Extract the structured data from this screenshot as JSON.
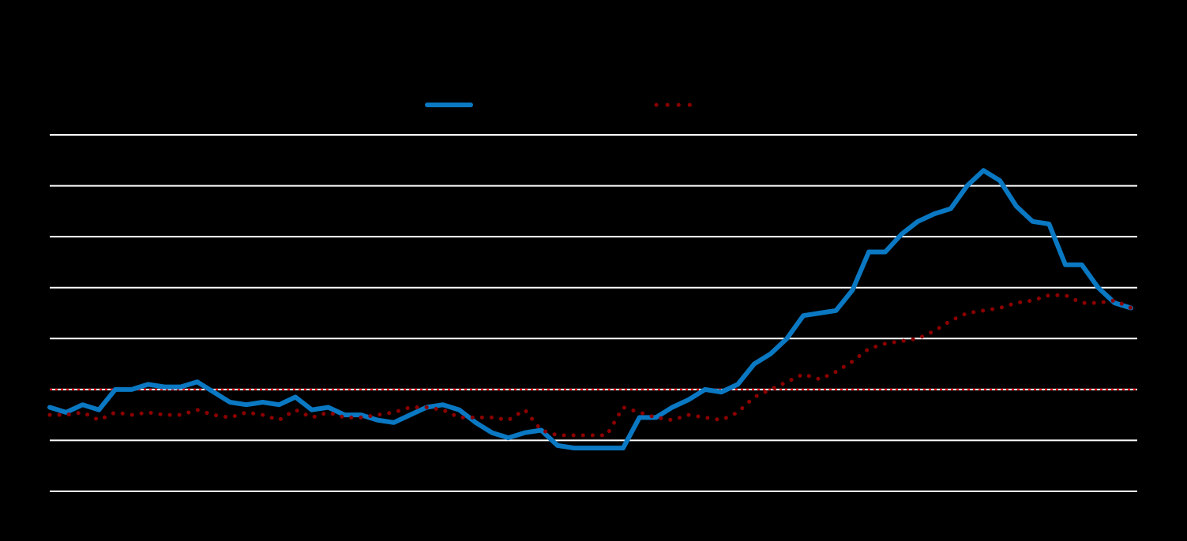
{
  "chart_data": {
    "type": "line",
    "title": "",
    "xlabel": "",
    "ylabel": "",
    "ylim": [
      -2,
      5
    ],
    "y_gridlines": [
      -2,
      -1,
      0,
      1,
      2,
      3,
      4,
      5
    ],
    "reference_line": {
      "y": 0,
      "color": "#e8161c",
      "style": "dotted"
    },
    "grid": true,
    "legend": {
      "placement": "top-center"
    },
    "background": "#000000",
    "gridline_color": "#ffffff",
    "series": [
      {
        "style": "solid",
        "color": "#0a78c2",
        "values": [
          -0.35,
          -0.45,
          -0.3,
          -0.4,
          0.0,
          0.0,
          0.1,
          0.05,
          0.05,
          0.15,
          -0.05,
          -0.25,
          -0.3,
          -0.25,
          -0.3,
          -0.15,
          -0.4,
          -0.35,
          -0.5,
          -0.5,
          -0.6,
          -0.65,
          -0.5,
          -0.35,
          -0.3,
          -0.4,
          -0.65,
          -0.85,
          -0.95,
          -0.85,
          -0.8,
          -1.1,
          -1.15,
          -1.15,
          -1.15,
          -1.15,
          -0.55,
          -0.55,
          -0.35,
          -0.2,
          0.0,
          -0.05,
          0.1,
          0.5,
          0.7,
          1.0,
          1.45,
          1.5,
          1.55,
          1.95,
          2.7,
          2.7,
          3.05,
          3.3,
          3.45,
          3.55,
          4.0,
          4.3,
          4.1,
          3.6,
          3.3,
          3.25,
          2.45,
          2.45,
          2.0,
          1.7,
          1.6
        ]
      },
      {
        "style": "dotted",
        "color": "#8b0000",
        "values": [
          -0.5,
          -0.5,
          -0.45,
          -0.6,
          -0.45,
          -0.5,
          -0.45,
          -0.5,
          -0.5,
          -0.4,
          -0.5,
          -0.55,
          -0.45,
          -0.5,
          -0.6,
          -0.4,
          -0.55,
          -0.45,
          -0.55,
          -0.55,
          -0.5,
          -0.45,
          -0.35,
          -0.35,
          -0.4,
          -0.55,
          -0.55,
          -0.55,
          -0.6,
          -0.4,
          -0.8,
          -0.9,
          -0.9,
          -0.9,
          -0.9,
          -0.35,
          -0.45,
          -0.55,
          -0.6,
          -0.5,
          -0.55,
          -0.6,
          -0.45,
          -0.15,
          0.0,
          0.15,
          0.3,
          0.2,
          0.35,
          0.55,
          0.8,
          0.9,
          0.95,
          1.0,
          1.15,
          1.35,
          1.5,
          1.55,
          1.6,
          1.7,
          1.75,
          1.85,
          1.85,
          1.7,
          1.7,
          1.75,
          1.6
        ]
      }
    ]
  }
}
